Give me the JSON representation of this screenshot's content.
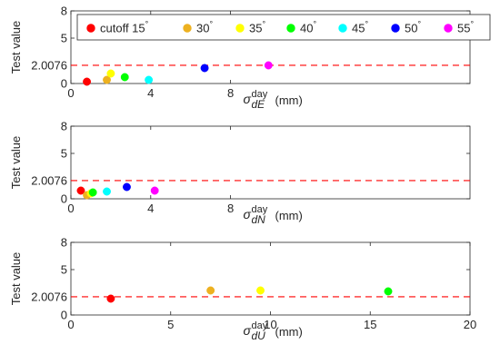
{
  "chart_data": [
    {
      "type": "scatter",
      "ylabel": "Test value",
      "xlabel_symbol": "σ",
      "xlabel_sup": "day",
      "xlabel_sub": "dE",
      "xlabel_unit": "(mm)",
      "xlim": [
        0,
        20
      ],
      "ylim": [
        0,
        8
      ],
      "yticks": [
        0,
        2.0076,
        5,
        8
      ],
      "yticklabels": [
        "0",
        "2.0076",
        "5",
        "8"
      ],
      "xticks": [
        0,
        4,
        8
      ],
      "xticklabels": [
        "0",
        "4",
        "8"
      ],
      "threshold": 2.0076,
      "series": [
        {
          "name": "cutoff 15°",
          "color": "#ff0000",
          "x": [
            0.8
          ],
          "y": [
            0.2
          ]
        },
        {
          "name": "30°",
          "color": "#edb120",
          "x": [
            1.8
          ],
          "y": [
            0.4
          ]
        },
        {
          "name": "35°",
          "color": "#ffff00",
          "x": [
            2.0
          ],
          "y": [
            1.1
          ]
        },
        {
          "name": "40°",
          "color": "#00ff00",
          "x": [
            2.7
          ],
          "y": [
            0.7
          ]
        },
        {
          "name": "45°",
          "color": "#00ffff",
          "x": [
            3.9
          ],
          "y": [
            0.4
          ]
        },
        {
          "name": "50°",
          "color": "#0000ff",
          "x": [
            6.7
          ],
          "y": [
            1.7
          ]
        },
        {
          "name": "55°",
          "color": "#ff00ff",
          "x": [
            9.9
          ],
          "y": [
            2.0
          ]
        }
      ]
    },
    {
      "type": "scatter",
      "ylabel": "Test value",
      "xlabel_symbol": "σ",
      "xlabel_sup": "day",
      "xlabel_sub": "dN",
      "xlabel_unit": "(mm)",
      "xlim": [
        0,
        20
      ],
      "ylim": [
        0,
        8
      ],
      "yticks": [
        0,
        2.0076,
        5,
        8
      ],
      "yticklabels": [
        "0",
        "2.0076",
        "5",
        "8"
      ],
      "xticks": [
        0,
        4,
        8
      ],
      "xticklabels": [
        "0",
        "4",
        "8"
      ],
      "threshold": 2.0076,
      "series": [
        {
          "name": "cutoff 15°",
          "color": "#ff0000",
          "x": [
            0.5
          ],
          "y": [
            0.9
          ]
        },
        {
          "name": "30°",
          "color": "#edb120",
          "x": [
            0.8
          ],
          "y": [
            0.4
          ]
        },
        {
          "name": "35°",
          "color": "#ffff00",
          "x": [
            1.0
          ],
          "y": [
            0.6
          ]
        },
        {
          "name": "40°",
          "color": "#00ff00",
          "x": [
            1.1
          ],
          "y": [
            0.7
          ]
        },
        {
          "name": "45°",
          "color": "#00ffff",
          "x": [
            1.8
          ],
          "y": [
            0.8
          ]
        },
        {
          "name": "50°",
          "color": "#0000ff",
          "x": [
            2.8
          ],
          "y": [
            1.3
          ]
        },
        {
          "name": "55°",
          "color": "#ff00ff",
          "x": [
            4.2
          ],
          "y": [
            0.9
          ]
        }
      ]
    },
    {
      "type": "scatter",
      "ylabel": "Test value",
      "xlabel_symbol": "σ",
      "xlabel_sup": "day",
      "xlabel_sub": "dU",
      "xlabel_unit": "(mm)",
      "xlim": [
        0,
        20
      ],
      "ylim": [
        0,
        8
      ],
      "yticks": [
        0,
        2.0076,
        5,
        8
      ],
      "yticklabels": [
        "0",
        "2.0076",
        "5",
        "8"
      ],
      "xticks": [
        0,
        5,
        10,
        15,
        20
      ],
      "xticklabels": [
        "0",
        "5",
        "10",
        "15",
        "20"
      ],
      "threshold": 2.0076,
      "series": [
        {
          "name": "cutoff 15°",
          "color": "#ff0000",
          "x": [
            2.0
          ],
          "y": [
            1.8
          ]
        },
        {
          "name": "30°",
          "color": "#edb120",
          "x": [
            7.0
          ],
          "y": [
            2.7
          ]
        },
        {
          "name": "35°",
          "color": "#ffff00",
          "x": [
            9.5
          ],
          "y": [
            2.7
          ]
        },
        {
          "name": "40°",
          "color": "#00ff00",
          "x": [
            15.9
          ],
          "y": [
            2.6
          ]
        }
      ]
    }
  ],
  "legend": {
    "placement": "top",
    "items": [
      {
        "label": "cutoff 15",
        "deg": "°",
        "color": "#ff0000"
      },
      {
        "label": "30",
        "deg": "°",
        "color": "#edb120"
      },
      {
        "label": "35",
        "deg": "°",
        "color": "#ffff00"
      },
      {
        "label": "40",
        "deg": "°",
        "color": "#00ff00"
      },
      {
        "label": "45",
        "deg": "°",
        "color": "#00ffff"
      },
      {
        "label": "50",
        "deg": "°",
        "color": "#0000ff"
      },
      {
        "label": "55",
        "deg": "°",
        "color": "#ff00ff"
      }
    ]
  },
  "style": {
    "threshold_color": "#ff0000",
    "axis_color": "#262626"
  }
}
